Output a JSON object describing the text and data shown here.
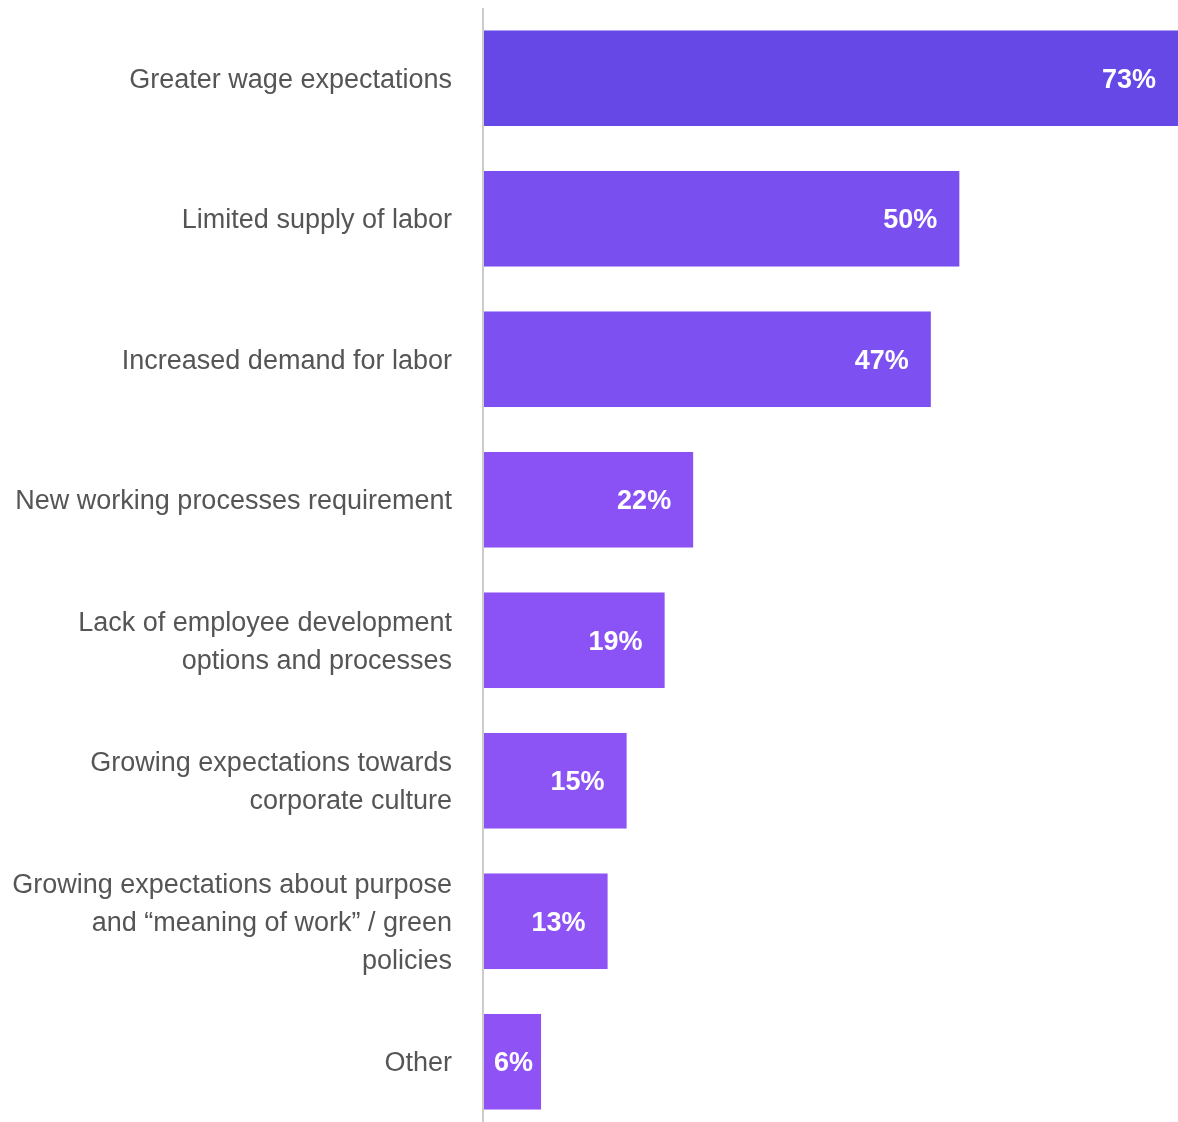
{
  "chart_data": {
    "type": "bar",
    "orientation": "horizontal",
    "categories": [
      "Greater wage expectations",
      "Limited supply of labor",
      "Increased demand for labor",
      "New working processes requirement",
      "Lack of employee development options and processes",
      "Growing expectations towards corporate culture",
      "Growing expectations about purpose and “meaning of work” / green policies",
      "Other"
    ],
    "values": [
      73,
      50,
      47,
      22,
      19,
      15,
      13,
      6
    ],
    "colors": [
      "#6548e6",
      "#7a4ff0",
      "#7c50f1",
      "#8a52f5",
      "#8b52f5",
      "#8c53f5",
      "#8d53f5",
      "#8f53f5"
    ],
    "value_labels": [
      "73%",
      "50%",
      "47%",
      "22%",
      "19%",
      "15%",
      "13%",
      "6%"
    ],
    "relative": false
  }
}
